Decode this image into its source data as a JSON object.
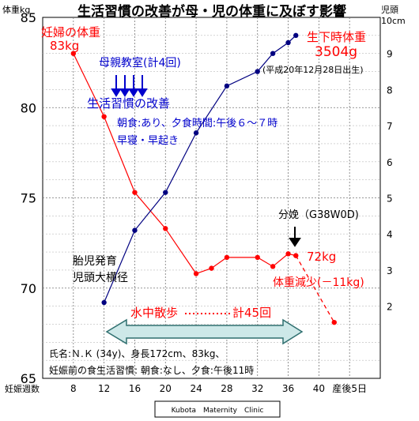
{
  "chart_data": {
    "type": "line",
    "title": "生活習慣の改善が母・児の体重に及ぼす影響",
    "left_axis_label": "体重kg",
    "right_axis_label_1": "児頭",
    "right_axis_label_2": "10cm",
    "x_axis_label": "妊娠週数",
    "x_ticks": [
      "8",
      "12",
      "16",
      "20",
      "24",
      "28",
      "32",
      "36",
      "40",
      "産後5日"
    ],
    "y_left_ticks": [
      "65",
      "70",
      "75",
      "80",
      "85"
    ],
    "y_right_ticks": [
      "2",
      "3",
      "4",
      "5",
      "6",
      "7",
      "8",
      "9"
    ],
    "ylim_left": [
      65,
      85
    ],
    "ylim_right": [
      0,
      10
    ],
    "grid": true,
    "series": [
      {
        "color": "#ff0000",
        "points": [
          [
            8,
            83.0
          ],
          [
            12,
            79.5
          ],
          [
            16,
            75.3
          ],
          [
            20,
            73.3
          ],
          [
            24,
            70.8
          ],
          [
            26,
            71.1
          ],
          [
            28,
            71.7
          ],
          [
            32,
            71.7
          ],
          [
            34,
            71.2
          ],
          [
            36,
            71.9
          ],
          [
            37,
            71.8
          ]
        ]
      },
      {
        "color": "#ff0000",
        "style": "dashed",
        "points": [
          [
            37,
            71.8
          ],
          [
            42,
            68.1
          ]
        ]
      },
      {
        "color": "#000080",
        "points": [
          [
            12,
            69.2
          ],
          [
            16,
            73.2
          ],
          [
            20,
            75.3
          ],
          [
            24,
            78.6
          ],
          [
            28,
            81.2
          ],
          [
            32,
            82.0
          ],
          [
            34,
            83.0
          ],
          [
            36,
            83.6
          ],
          [
            37,
            84.0
          ]
        ]
      }
    ]
  },
  "labels": {
    "maternal_weight_1": "妊婦の体重",
    "maternal_weight_2": "83kg",
    "birth_weight_1": "生下時体重",
    "birth_weight_2": "3504g",
    "birth_date": "(平成20年12月28日出生)",
    "class": "母親教室(計4回)",
    "improvement": "生活習慣の改善",
    "breakfast": "朝食:あり、夕食時間:午後６～７時",
    "early": "早寝・早起き",
    "delivery": "分娩（G38W0D)",
    "final_weight": "72kg",
    "weight_loss": "体重減少(－11kg)",
    "fetal_1": "胎児発育",
    "fetal_2": "児頭大横径",
    "walk": "水中散歩",
    "walk_total": "計45回",
    "patient": "氏名:Ｎ.Ｋ (34y)、身長172cm、83kg、",
    "before_habits": "妊娠前の食生活習慣: 朝食:なし、夕食:午後11時",
    "clinic": "Kubota　Maternity　Clinic"
  },
  "colors": {
    "red": "#ff0000",
    "blue": "#000080",
    "label_blue": "#0000cc",
    "arrow_fill": "#cde8e8",
    "arrow_stroke": "#2f6f6f"
  }
}
